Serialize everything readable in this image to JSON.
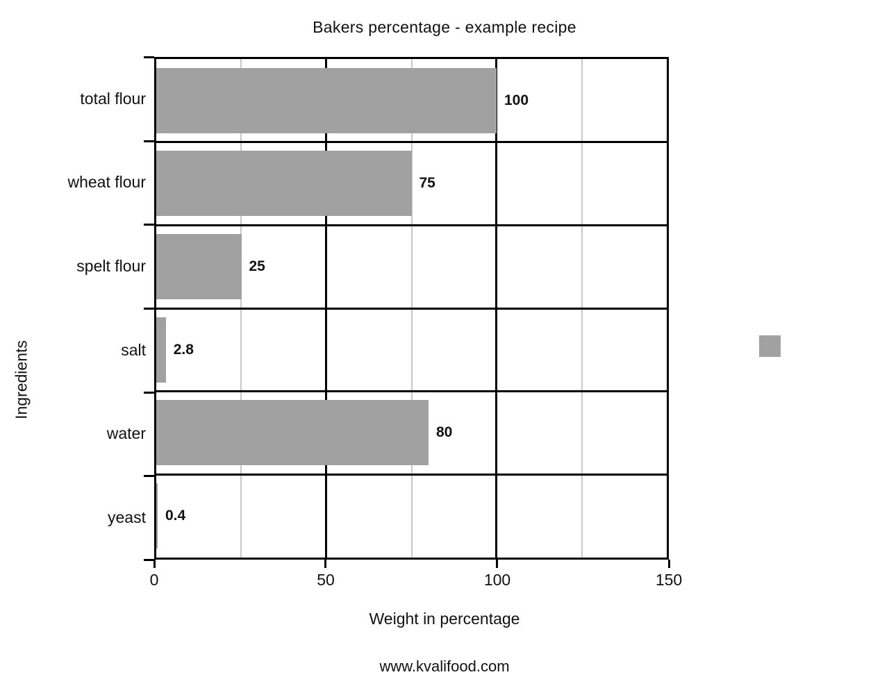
{
  "title": "Bakers percentage - example recipe",
  "footer": "www.kvalifood.com",
  "chart_data": {
    "type": "bar",
    "orientation": "horizontal",
    "title": "Bakers percentage - example recipe",
    "xlabel": "Weight in percentage",
    "ylabel": "Ingredients",
    "categories": [
      "total flour",
      "wheat flour",
      "spelt flour",
      "salt",
      "water",
      "yeast"
    ],
    "values": [
      100,
      75,
      25,
      2.8,
      80,
      0.4
    ],
    "value_labels": [
      "100",
      "75",
      "25",
      "2.8",
      "80",
      "0.4"
    ],
    "xlim": [
      0,
      150
    ],
    "x_major_ticks": [
      0,
      50,
      100,
      150
    ],
    "x_major_tick_labels": [
      "0",
      "50",
      "100",
      "150"
    ],
    "x_major_gridlines": [
      50,
      100
    ],
    "x_minor_gridlines": [
      25,
      75,
      125
    ],
    "grid": true,
    "legend": {
      "visible": true,
      "label": "",
      "position": "right",
      "swatch_color": "#a1a1a1"
    },
    "colors": {
      "bar": "#a1a1a1",
      "minor_gridline": "#c7c7c7",
      "major_line": "#000000",
      "text": "#111111",
      "background": "#ffffff"
    }
  }
}
